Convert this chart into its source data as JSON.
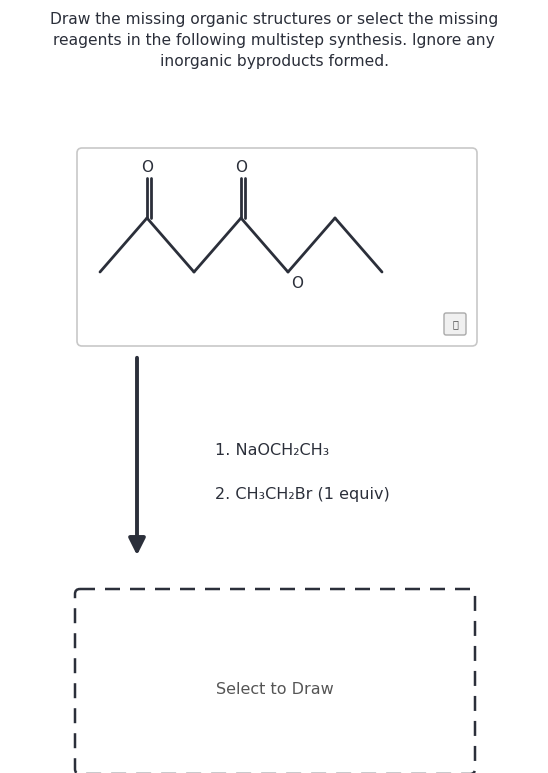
{
  "title_line1": "Draw the missing organic structures or select the missing",
  "title_line2": "reagents in the following multistep synthesis. Ignore any",
  "title_line3": "inorganic byproducts formed.",
  "title_fontsize": 11.2,
  "bg_color": "#ffffff",
  "text_color": "#2b2f3a",
  "reagent1": "1. NaOCH₂CH₃",
  "reagent2": "2. CH₃CH₂Br (1 equiv)",
  "select_to_draw": "Select to Draw",
  "box1_border": "#c8c8c8",
  "line_color": "#2b2f3a",
  "dashed_border": "#2b2f3a",
  "mol_color": "#2b2f3a"
}
